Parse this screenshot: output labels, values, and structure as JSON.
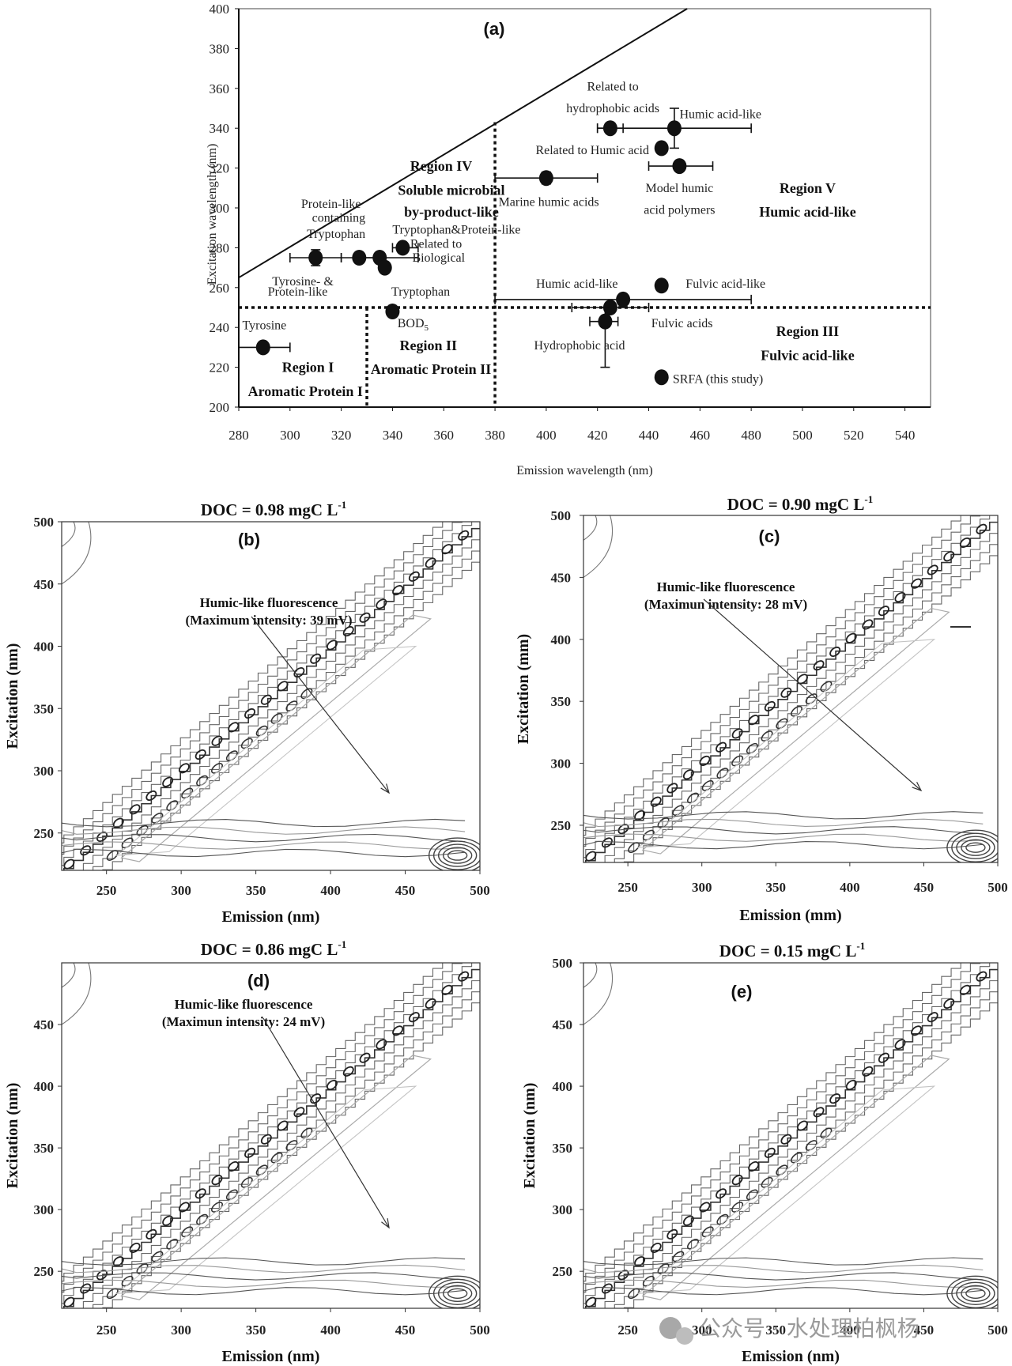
{
  "chart_data": [
    {
      "type": "scatter",
      "panel": "(a)",
      "xlabel": "Emission wavelength (nm)",
      "ylabel": "Excitation wavelength (nm)",
      "xlim": [
        280,
        550
      ],
      "ylim": [
        200,
        400
      ],
      "xticks": [
        280,
        300,
        320,
        340,
        360,
        380,
        400,
        420,
        440,
        460,
        480,
        500,
        520,
        540
      ],
      "yticks": [
        200,
        220,
        240,
        260,
        280,
        300,
        320,
        340,
        360,
        380,
        400
      ],
      "points": [
        {
          "x": 289.5,
          "y": 230,
          "xerr": [
            280,
            300
          ],
          "yerr": null
        },
        {
          "x": 310,
          "y": 275,
          "xerr": [
            300,
            320
          ],
          "yerr": [
            271,
            279
          ]
        },
        {
          "x": 327,
          "y": 275,
          "xerr": [
            320,
            335
          ],
          "yerr": null
        },
        {
          "x": 335,
          "y": 275,
          "xerr": [
            325,
            350
          ],
          "yerr": null
        },
        {
          "x": 337,
          "y": 270,
          "xerr": null,
          "yerr": null
        },
        {
          "x": 344,
          "y": 280,
          "xerr": [
            340,
            350
          ],
          "yerr": null
        },
        {
          "x": 340,
          "y": 248,
          "xerr": null,
          "yerr": null
        },
        {
          "x": 400,
          "y": 315,
          "xerr": [
            380,
            420
          ],
          "yerr": [
            312,
            318
          ]
        },
        {
          "x": 425,
          "y": 340,
          "xerr": [
            420,
            430
          ],
          "yerr": null
        },
        {
          "x": 450,
          "y": 340,
          "xerr": [
            420,
            480
          ],
          "yerr": [
            330,
            350
          ]
        },
        {
          "x": 445,
          "y": 330,
          "xerr": null,
          "yerr": null
        },
        {
          "x": 452,
          "y": 321,
          "xerr": [
            440,
            465
          ],
          "yerr": null
        },
        {
          "x": 430,
          "y": 254,
          "xerr": [
            380,
            480
          ],
          "yerr": null
        },
        {
          "x": 425,
          "y": 250,
          "xerr": [
            410,
            440
          ],
          "yerr": null
        },
        {
          "x": 423,
          "y": 243,
          "xerr": [
            417,
            428
          ],
          "yerr": [
            220,
            250
          ]
        },
        {
          "x": 445,
          "y": 261,
          "xerr": null,
          "yerr": null
        },
        {
          "x": 445,
          "y": 215,
          "xerr": null,
          "yerr": null
        }
      ],
      "labels": [
        {
          "text": "Tyrosine",
          "x": 290,
          "y": 241
        },
        {
          "text": "Protein-like",
          "x": 316,
          "y": 302
        },
        {
          "text": "containing",
          "x": 319,
          "y": 295
        },
        {
          "text": "Tryptophan",
          "x": 318,
          "y": 287
        },
        {
          "text": "Tryptophan&Protein-like",
          "x": 365,
          "y": 289
        },
        {
          "text": "Related to",
          "x": 357,
          "y": 282
        },
        {
          "text": "Biological",
          "x": 358,
          "y": 275
        },
        {
          "text": "Tyrosine- &",
          "x": 305,
          "y": 263
        },
        {
          "text": "Protein-like",
          "x": 303,
          "y": 258
        },
        {
          "text": "Tryptophan",
          "x": 351,
          "y": 258
        },
        {
          "text": "BOD",
          "x": 348,
          "y": 242
        },
        {
          "text": "Related to",
          "x": 426,
          "y": 361
        },
        {
          "text": "hydrophobic acids",
          "x": 426,
          "y": 350
        },
        {
          "text": "Humic acid-like",
          "x": 468,
          "y": 347
        },
        {
          "text": "Related to Humic acid",
          "x": 418,
          "y": 329
        },
        {
          "text": "Marine humic acids",
          "x": 401,
          "y": 303
        },
        {
          "text": "Model humic",
          "x": 452,
          "y": 310
        },
        {
          "text": "acid polymers",
          "x": 452,
          "y": 299
        },
        {
          "text": "Humic acid-like",
          "x": 412,
          "y": 262
        },
        {
          "text": "Fulvic acid-like",
          "x": 470,
          "y": 262
        },
        {
          "text": "Fulvic acids",
          "x": 453,
          "y": 242
        },
        {
          "text": "Hydrophobic acid",
          "x": 413,
          "y": 231
        },
        {
          "text": "SRFA (this study)",
          "x": 467,
          "y": 214
        }
      ],
      "regions": [
        {
          "text": "Region I",
          "x": 307,
          "y": 220
        },
        {
          "text": "Aromatic Protein I",
          "x": 306,
          "y": 208
        },
        {
          "text": "Region II",
          "x": 354,
          "y": 231
        },
        {
          "text": "Aromatic Protein II",
          "x": 355,
          "y": 219
        },
        {
          "text": "Region III",
          "x": 502,
          "y": 238
        },
        {
          "text": "Fulvic acid-like",
          "x": 502,
          "y": 226
        },
        {
          "text": "Region IV",
          "x": 359,
          "y": 321
        },
        {
          "text": "Soluble microbial",
          "x": 363,
          "y": 309
        },
        {
          "text": "by-product-like",
          "x": 363,
          "y": 298
        },
        {
          "text": "Region V",
          "x": 502,
          "y": 310
        },
        {
          "text": "Humic acid-like",
          "x": 502,
          "y": 298
        }
      ],
      "diagonal": [
        [
          280,
          265
        ],
        [
          455,
          400
        ]
      ],
      "dotted_h": 250,
      "dotted_v": [
        330,
        380
      ]
    },
    {
      "type": "heatmap",
      "panel": "(b)",
      "title": "DOC = 0.98 mgC L",
      "superscript": "-1",
      "xlabel": "Emission (nm)",
      "ylabel": "Excitation (nm)",
      "xticks": [
        250,
        300,
        350,
        400,
        450,
        500
      ],
      "yticks": [
        250,
        300,
        350,
        400,
        450,
        500
      ],
      "annotation": [
        "Humic-like fluorescence",
        "(Maximum intensity: 39 mV)"
      ]
    },
    {
      "type": "heatmap",
      "panel": "(c)",
      "title": "DOC = 0.90 mgC L",
      "superscript": "-1",
      "xlabel": "Emission (mm)",
      "ylabel": "Excitation (mm)",
      "xticks": [
        250,
        300,
        350,
        400,
        450,
        500
      ],
      "yticks": [
        250,
        300,
        350,
        400,
        450,
        500
      ],
      "annotation": [
        "Humic-like fluorescence",
        "(Maximun intensity: 28 mV)"
      ]
    },
    {
      "type": "heatmap",
      "panel": "(d)",
      "title": "DOC = 0.86 mgC L",
      "superscript": "-1",
      "xlabel": "Emission (nm)",
      "ylabel": "Excitation (nm)",
      "xticks": [
        250,
        300,
        350,
        400,
        450,
        500
      ],
      "yticks": [
        250,
        300,
        350,
        400,
        450
      ],
      "annotation": [
        "Humic-like fluorescence",
        "(Maximun intensity: 24 mV)"
      ]
    },
    {
      "type": "heatmap",
      "panel": "(e)",
      "title": "DOC = 0.15 mgC L",
      "superscript": "-1",
      "xlabel": "Emission (nm)",
      "ylabel": "Excitation (nm)",
      "xticks": [
        250,
        300,
        350,
        400,
        450,
        500
      ],
      "yticks": [
        250,
        300,
        350,
        400,
        450,
        500
      ],
      "annotation": []
    }
  ],
  "watermark": "公众号 · 水处理柏枫杨"
}
